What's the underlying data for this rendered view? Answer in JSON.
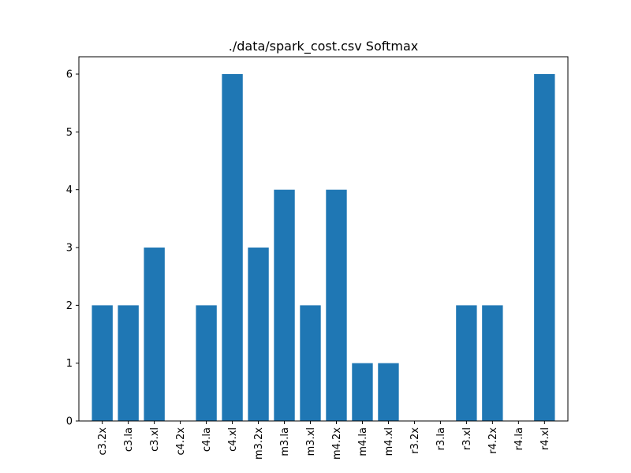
{
  "chart_data": {
    "type": "bar",
    "title": "./data/spark_cost.csv Softmax",
    "xlabel": "",
    "ylabel": "",
    "categories": [
      "c3.2x",
      "c3.la",
      "c3.xl",
      "c4.2x",
      "c4.la",
      "c4.xl",
      "m3.2x",
      "m3.la",
      "m3.xl",
      "m4.2x",
      "m4.la",
      "m4.xl",
      "r3.2x",
      "r3.la",
      "r3.xl",
      "r4.2x",
      "r4.la",
      "r4.xl"
    ],
    "values": [
      2,
      2,
      3,
      0,
      2,
      6,
      3,
      4,
      2,
      4,
      1,
      1,
      0,
      0,
      2,
      2,
      0,
      6
    ],
    "ylim": [
      0,
      6.3
    ],
    "yticks": [
      0,
      1,
      2,
      3,
      4,
      5,
      6
    ],
    "bar_color": "#1f77b4",
    "grid": false,
    "legend": "none"
  }
}
